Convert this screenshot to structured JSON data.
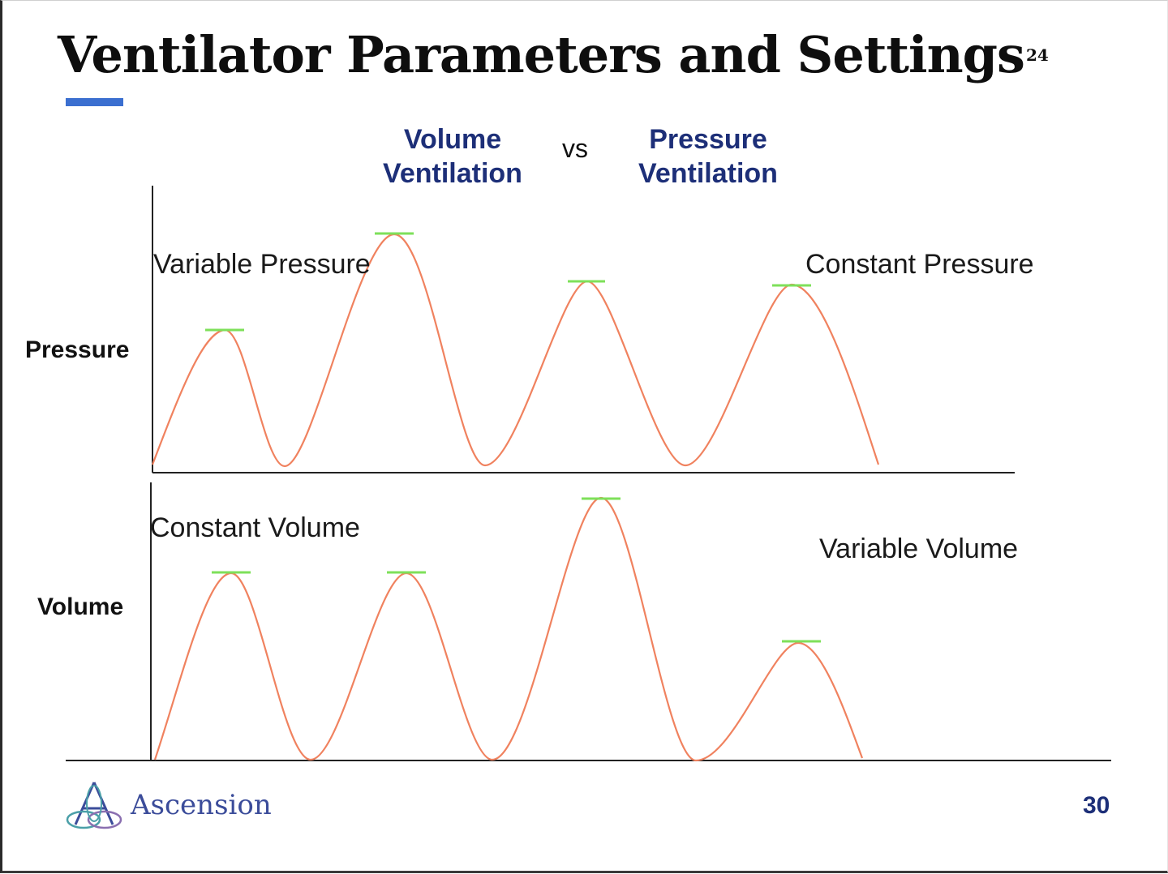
{
  "slide": {
    "title": "Ventilator Parameters and Settings",
    "title_superscript": "24",
    "page_number": "30",
    "brand": "Ascension"
  },
  "headers": {
    "left": {
      "line1": "Volume",
      "line2": "Ventilation"
    },
    "vs": "vs",
    "right": {
      "line1": "Pressure",
      "line2": "Ventilation"
    }
  },
  "rows": {
    "pressure": {
      "label": "Pressure",
      "annotation_left": "Variable Pressure",
      "annotation_right": "Constant Pressure"
    },
    "volume": {
      "label": "Volume",
      "annotation_left": "Constant Volume",
      "annotation_right": "Variable Volume"
    }
  },
  "colors": {
    "waveform": "#f0825f",
    "peak_marker": "#7ee05a",
    "axis": "#222222",
    "header_blue": "#1d2f78",
    "title_bar": "#3b6fd0",
    "brand": "#3b4c9a"
  },
  "icons": {
    "logo": "ascension-logo-icon"
  }
}
